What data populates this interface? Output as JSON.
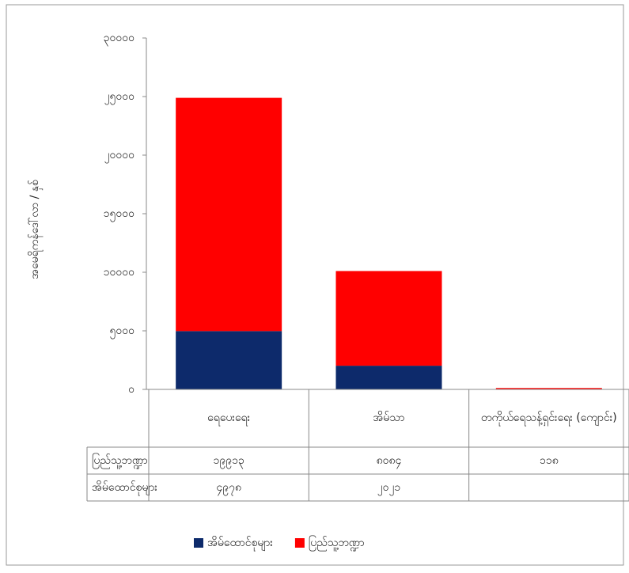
{
  "chart_data": {
    "type": "bar",
    "stacked": true,
    "y_label": "အမေရိကန်ဒေါ်လာ / နှစ်",
    "categories": [
      "ရေပေးရေး",
      "အိမ်သာ",
      "တကိုယ်ရေသန့်ရှင်းရေး (ကျောင်း)"
    ],
    "series": [
      {
        "name": "အိမ်ထောင်စုများ",
        "color": "#0d2a6b",
        "values": [
          4978,
          2021,
          null
        ],
        "value_labels": [
          "၄၉၇၈",
          "၂၀၂၁",
          null
        ]
      },
      {
        "name": "ပြည်သူ့ဘဏ္ဍာ",
        "color": "#ff0000",
        "values": [
          19913,
          8084,
          118
        ],
        "value_labels": [
          "၁၉၉၁၃",
          "၈၀၈၄",
          "၁၁၈"
        ]
      }
    ],
    "ylim": [
      0,
      30000
    ],
    "yticks": [
      {
        "value": 0,
        "label": "၀"
      },
      {
        "value": 5000,
        "label": "၅၀၀၀"
      },
      {
        "value": 10000,
        "label": "၁၀၀၀၀"
      },
      {
        "value": 15000,
        "label": "၁၅၀၀၀"
      },
      {
        "value": 20000,
        "label": "၂၀၀၀၀"
      },
      {
        "value": 25000,
        "label": "၂၅၀၀၀"
      },
      {
        "value": 30000,
        "label": "၃၀၀၀၀"
      }
    ],
    "legend": "bottom"
  }
}
